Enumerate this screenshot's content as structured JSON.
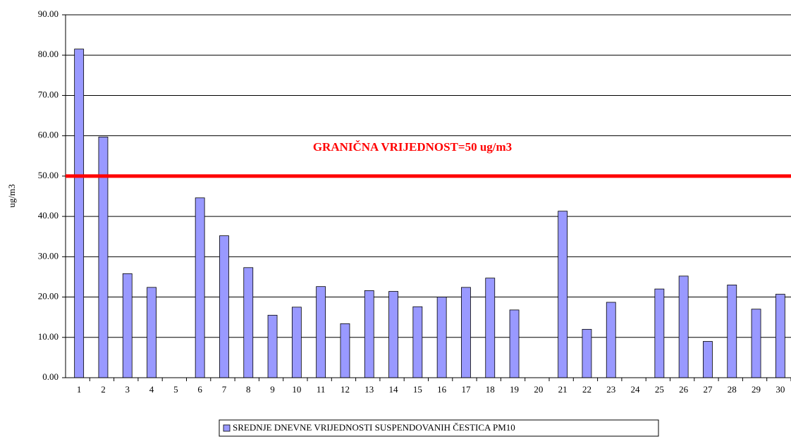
{
  "chart_data": {
    "type": "bar",
    "y_label": "ug/m3",
    "annotation": "GRANIČNA VRIJEDNOST=50 ug/m3",
    "threshold": 50,
    "threshold_color": "#ff0000",
    "categories": [
      "1",
      "2",
      "3",
      "4",
      "5",
      "6",
      "7",
      "8",
      "9",
      "10",
      "11",
      "12",
      "13",
      "14",
      "15",
      "16",
      "17",
      "18",
      "19",
      "20",
      "21",
      "22",
      "23",
      "24",
      "25",
      "26",
      "27",
      "28",
      "29",
      "30"
    ],
    "series": [
      {
        "name": "SREDNJE DNEVNE VRIJEDNOSTI SUSPENDOVANIH ČESTICA PM10",
        "color": "#9999ff",
        "values": [
          81.5,
          59.7,
          25.8,
          22.4,
          null,
          44.6,
          35.2,
          27.3,
          15.5,
          17.5,
          22.6,
          13.4,
          21.6,
          21.4,
          17.6,
          20.0,
          22.4,
          24.7,
          16.8,
          null,
          41.3,
          12.0,
          18.7,
          null,
          22.0,
          25.2,
          9.0,
          23.0,
          17.0,
          20.7
        ]
      }
    ],
    "ylim": [
      0,
      90
    ],
    "yticks": [
      {
        "value": 0,
        "label": "0.00"
      },
      {
        "value": 10,
        "label": "10.00"
      },
      {
        "value": 20,
        "label": "20.00"
      },
      {
        "value": 30,
        "label": "30.00"
      },
      {
        "value": 40,
        "label": "40.00"
      },
      {
        "value": 50,
        "label": "50.00"
      },
      {
        "value": 60,
        "label": "60.00"
      },
      {
        "value": 70,
        "label": "70.00"
      },
      {
        "value": 80,
        "label": "80.00"
      },
      {
        "value": 90,
        "label": "90.00"
      }
    ],
    "grid": true
  }
}
